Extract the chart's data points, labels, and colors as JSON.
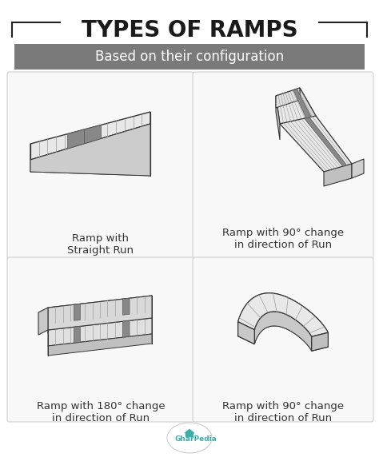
{
  "title": "TYPES OF RAMPS",
  "subtitle": "Based on their configuration",
  "bg_color": "#ffffff",
  "title_color": "#1a1a1a",
  "subtitle_bg": "#7a7a7a",
  "subtitle_text_color": "#ffffff",
  "label1": "Ramp with\nStraight Run",
  "label2": "Ramp with 90° change\nin direction of Run",
  "label3": "Ramp with 180° change\nin direction of Run",
  "label4": "Ramp with 90° change\nin direction of Run",
  "label_color": "#333333",
  "ramp_face": "#e8e8e8",
  "ramp_side": "#c0c0c0",
  "ramp_dark": "#333333",
  "ramp_grid": "#999999",
  "ramp_accent": "#888888",
  "card_bg": "#f8f8f8",
  "card_edge": "#d0d0d0",
  "logo_color": "#3aafa9"
}
